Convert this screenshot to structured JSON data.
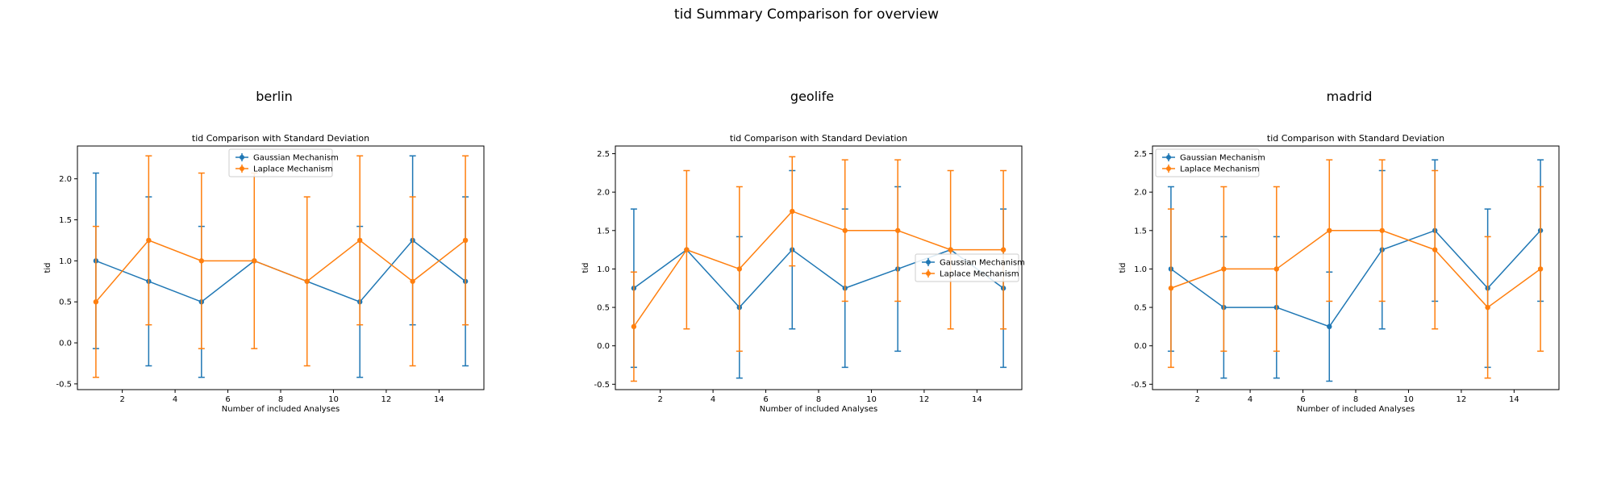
{
  "figure": {
    "title": "tid Summary Comparison for overview"
  },
  "colors": {
    "gaussian": "#1f77b4",
    "laplace": "#ff7f0e"
  },
  "chart_data": [
    {
      "type": "line",
      "panel_title": "berlin",
      "title": "tid Comparison with Standard Deviation",
      "xlabel": "Number of included Analyses",
      "ylabel": "tid",
      "xlim": [
        0.3,
        15.7
      ],
      "ylim": [
        -0.57,
        2.4
      ],
      "xticks": [
        2,
        4,
        6,
        8,
        10,
        12,
        14
      ],
      "yticks": [
        -0.5,
        0.0,
        0.5,
        1.0,
        1.5,
        2.0
      ],
      "legend": "upper center",
      "x": [
        1,
        3,
        5,
        7,
        9,
        11,
        13,
        15
      ],
      "series": [
        {
          "name": "Gaussian Mechanism",
          "values": [
            1.0,
            0.75,
            0.5,
            1.0,
            0.75,
            0.5,
            1.25,
            0.75
          ],
          "std": [
            1.07,
            1.03,
            0.92,
            0.0,
            0.0,
            0.92,
            1.03,
            1.03
          ]
        },
        {
          "name": "Laplace Mechanism",
          "values": [
            0.5,
            1.25,
            1.0,
            1.0,
            0.75,
            1.25,
            0.75,
            1.25
          ],
          "std": [
            0.92,
            1.03,
            1.07,
            1.07,
            1.03,
            1.03,
            1.03,
            1.03
          ]
        }
      ]
    },
    {
      "type": "line",
      "panel_title": "geolife",
      "title": "tid Comparison with Standard Deviation",
      "xlabel": "Number of included Analyses",
      "ylabel": "tid",
      "xlim": [
        0.3,
        15.7
      ],
      "ylim": [
        -0.57,
        2.6
      ],
      "xticks": [
        2,
        4,
        6,
        8,
        10,
        12,
        14
      ],
      "yticks": [
        -0.5,
        0.0,
        0.5,
        1.0,
        1.5,
        2.0,
        2.5
      ],
      "legend": "center right",
      "x": [
        1,
        3,
        5,
        7,
        9,
        11,
        13,
        15
      ],
      "series": [
        {
          "name": "Gaussian Mechanism",
          "values": [
            0.75,
            1.25,
            0.5,
            1.25,
            0.75,
            1.0,
            1.25,
            0.75
          ],
          "std": [
            1.03,
            0.0,
            0.92,
            1.03,
            1.03,
            1.07,
            0.0,
            1.03
          ]
        },
        {
          "name": "Laplace Mechanism",
          "values": [
            0.25,
            1.25,
            1.0,
            1.75,
            1.5,
            1.5,
            1.25,
            1.25
          ],
          "std": [
            0.71,
            1.03,
            1.07,
            0.71,
            0.92,
            0.92,
            1.03,
            1.03
          ]
        }
      ]
    },
    {
      "type": "line",
      "panel_title": "madrid",
      "title": "tid Comparison with Standard Deviation",
      "xlabel": "Number of included Analyses",
      "ylabel": "tid",
      "xlim": [
        0.3,
        15.7
      ],
      "ylim": [
        -0.57,
        2.6
      ],
      "xticks": [
        2,
        4,
        6,
        8,
        10,
        12,
        14
      ],
      "yticks": [
        -0.5,
        0.0,
        0.5,
        1.0,
        1.5,
        2.0,
        2.5
      ],
      "legend": "upper left",
      "x": [
        1,
        3,
        5,
        7,
        9,
        11,
        13,
        15
      ],
      "series": [
        {
          "name": "Gaussian Mechanism",
          "values": [
            1.0,
            0.5,
            0.5,
            0.25,
            1.25,
            1.5,
            0.75,
            1.5
          ],
          "std": [
            1.07,
            0.92,
            0.92,
            0.71,
            1.03,
            0.92,
            1.03,
            0.92
          ]
        },
        {
          "name": "Laplace Mechanism",
          "values": [
            0.75,
            1.0,
            1.0,
            1.5,
            1.5,
            1.25,
            0.5,
            1.0
          ],
          "std": [
            1.03,
            1.07,
            1.07,
            0.92,
            0.92,
            1.03,
            0.92,
            1.07
          ]
        }
      ]
    }
  ]
}
